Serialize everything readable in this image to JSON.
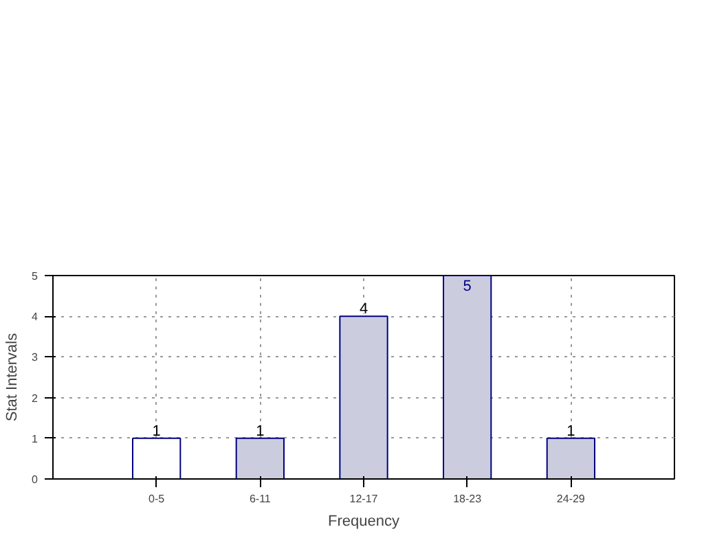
{
  "chart_data": {
    "type": "bar",
    "xlabel": "Frequency",
    "ylabel": "Stat Intervals",
    "categories": [
      "0-5",
      "6-11",
      "12-17",
      "18-23",
      "24-29"
    ],
    "values": [
      1,
      1,
      4,
      5,
      1
    ],
    "colors": [
      "#ffffff",
      "#ccccdf",
      "#ccccdf",
      "#ccccdf",
      "#ccccdf"
    ],
    "ylim": [
      0,
      5
    ],
    "yticks": [
      0,
      1,
      2,
      3,
      4,
      5
    ],
    "grid": true,
    "data_labels": true
  }
}
